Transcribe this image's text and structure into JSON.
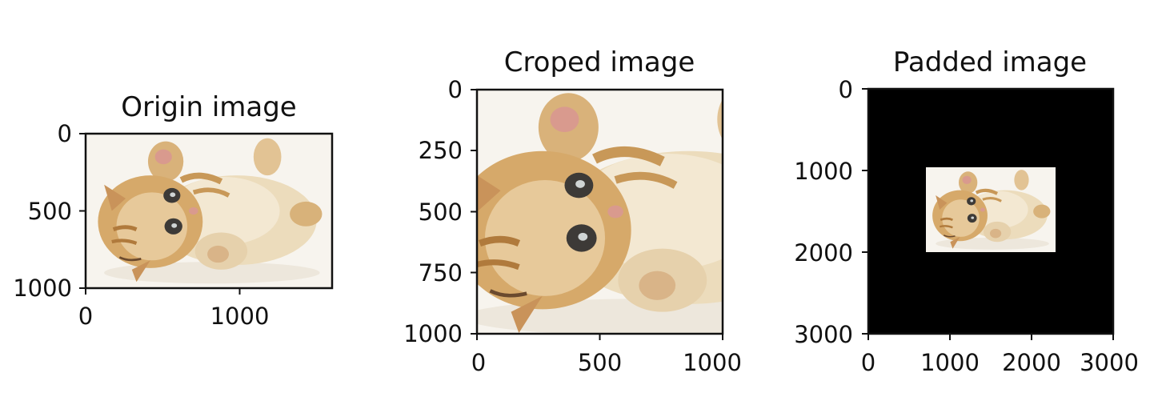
{
  "chart_data": [
    {
      "type": "image",
      "title": "Origin image",
      "content": "kitten-photo",
      "xlim": [
        0,
        1600
      ],
      "ylim": [
        1000,
        0
      ],
      "xticks": [
        0,
        1000
      ],
      "yticks": [
        0,
        500,
        1000
      ],
      "xtick_labels": [
        "0",
        "1000"
      ],
      "ytick_labels": [
        "0",
        "500",
        "1000"
      ]
    },
    {
      "type": "image",
      "title": "Croped image",
      "content": "kitten-photo-cropped",
      "xlim": [
        0,
        1000
      ],
      "ylim": [
        1000,
        0
      ],
      "xticks": [
        0,
        500,
        1000
      ],
      "yticks": [
        0,
        250,
        500,
        750,
        1000
      ],
      "xtick_labels": [
        "0",
        "500",
        "1000"
      ],
      "ytick_labels": [
        "0",
        "250",
        "500",
        "750",
        "1000"
      ]
    },
    {
      "type": "image",
      "title": "Padded image",
      "content": "kitten-photo-on-black-padding",
      "xlim": [
        0,
        3000
      ],
      "ylim": [
        3000,
        0
      ],
      "xticks": [
        0,
        1000,
        2000,
        3000
      ],
      "yticks": [
        0,
        1000,
        2000,
        3000
      ],
      "xtick_labels": [
        "0",
        "1000",
        "2000",
        "3000"
      ],
      "ytick_labels": [
        "0",
        "1000",
        "2000",
        "3000"
      ],
      "inner_image_extent_x": [
        700,
        2300
      ],
      "inner_image_extent_y": [
        950,
        1950
      ],
      "padding_color": "#000000"
    }
  ],
  "colors": {
    "background": "#ffffff",
    "axes": "#111111",
    "photo_bg": "#f7f4ee",
    "fur_light": "#e8d6b4",
    "fur_mid": "#d2ae74",
    "fur_dark": "#b07a3c",
    "paw_pink": "#d99a8e",
    "eye": "#3d3a37"
  }
}
